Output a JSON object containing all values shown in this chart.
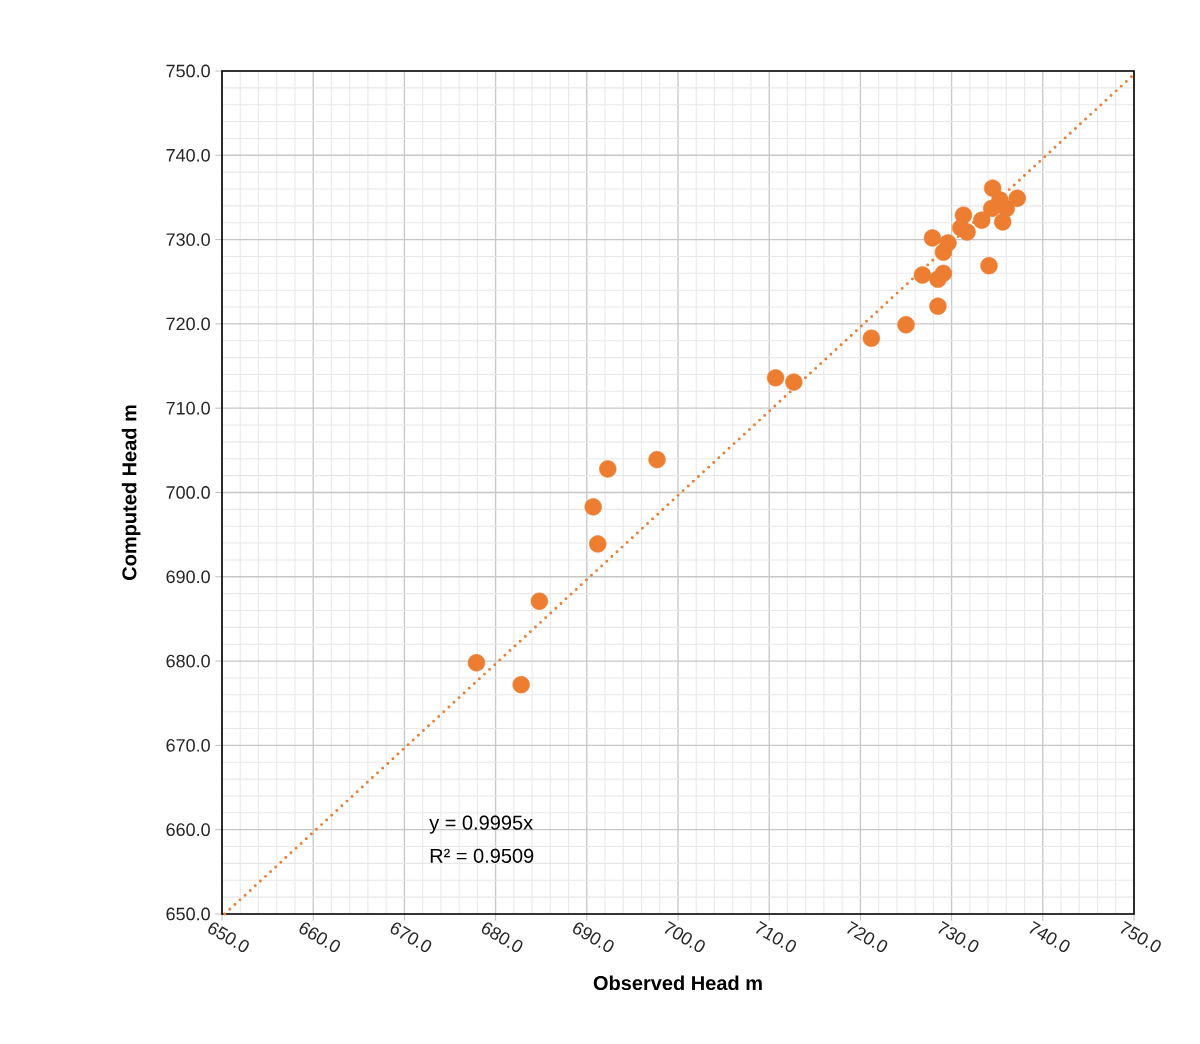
{
  "chart_data": {
    "type": "scatter",
    "xlabel": "Observed Head m",
    "ylabel": "Computed Head m",
    "xlim": [
      650,
      750
    ],
    "ylim": [
      650,
      750
    ],
    "xticks": [
      {
        "value": 650,
        "label": "650.0"
      },
      {
        "value": 660,
        "label": "660.0"
      },
      {
        "value": 670,
        "label": "670.0"
      },
      {
        "value": 680,
        "label": "680.0"
      },
      {
        "value": 690,
        "label": "690.0"
      },
      {
        "value": 700,
        "label": "700.0"
      },
      {
        "value": 710,
        "label": "710.0"
      },
      {
        "value": 720,
        "label": "720.0"
      },
      {
        "value": 730,
        "label": "730.0"
      },
      {
        "value": 740,
        "label": "740.0"
      },
      {
        "value": 750,
        "label": "750.0"
      }
    ],
    "yticks": [
      {
        "value": 650,
        "label": "650.0"
      },
      {
        "value": 660,
        "label": "660.0"
      },
      {
        "value": 670,
        "label": "670.0"
      },
      {
        "value": 680,
        "label": "680.0"
      },
      {
        "value": 690,
        "label": "690.0"
      },
      {
        "value": 700,
        "label": "700.0"
      },
      {
        "value": 710,
        "label": "710.0"
      },
      {
        "value": 720,
        "label": "720.0"
      },
      {
        "value": 730,
        "label": "730.0"
      },
      {
        "value": 740,
        "label": "740.0"
      },
      {
        "value": 750,
        "label": "750.0"
      }
    ],
    "grid": true,
    "annotations": [
      "y = 0.9995x",
      "R² = 0.9509"
    ],
    "series": [
      {
        "color": "#ed7d31",
        "marker": "circle",
        "x": [
          677.9,
          682.8,
          684.8,
          690.7,
          691.2,
          692.3,
          697.7,
          710.7,
          712.7,
          721.2,
          725.0,
          728.5,
          734.1,
          726.8,
          728.5,
          729.1,
          727.9,
          729.1,
          729.6,
          731.3,
          731.0,
          731.7,
          733.3,
          734.5,
          734.4,
          735.6,
          736.0,
          737.2,
          735.3
        ],
        "values": [
          679.8,
          677.2,
          687.1,
          698.3,
          693.9,
          702.8,
          703.9,
          713.6,
          713.1,
          718.3,
          719.9,
          722.1,
          726.9,
          725.8,
          725.3,
          726.0,
          730.2,
          728.5,
          729.6,
          732.9,
          731.4,
          730.9,
          732.3,
          736.1,
          733.7,
          732.1,
          733.7,
          734.9,
          734.7
        ]
      },
      {
        "type": "line",
        "color": "#ed7d31",
        "line_style": "dotted",
        "marker": "none",
        "x": [
          650.3,
          750
        ],
        "values": [
          650.0,
          749.6
        ]
      }
    ]
  }
}
